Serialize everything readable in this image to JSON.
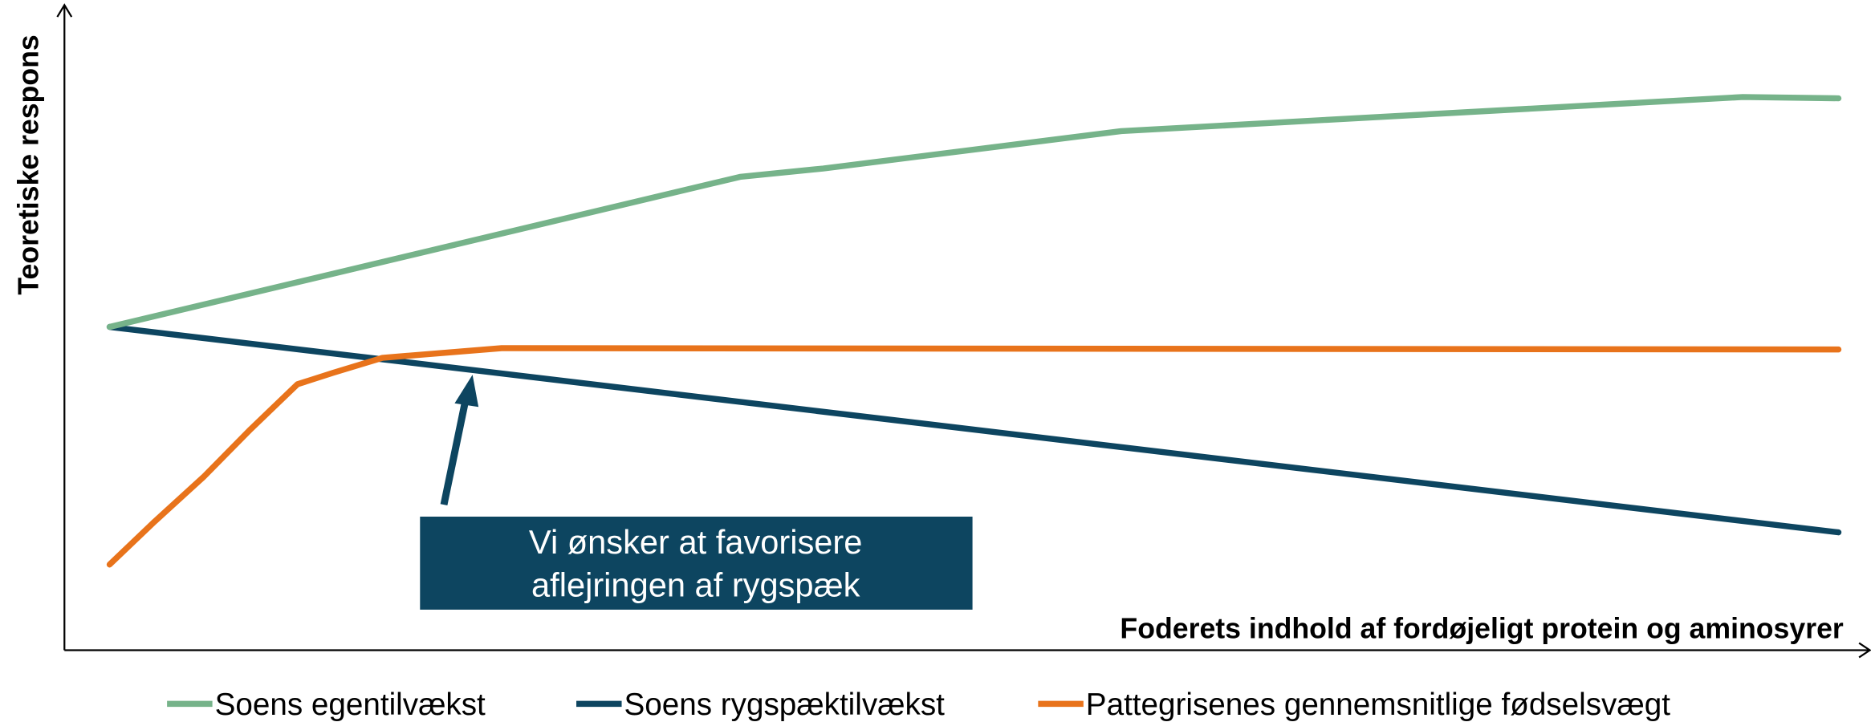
{
  "chart_data": {
    "type": "line",
    "x_label": "Foderets indhold af fordøjeligt protein og aminosyrer",
    "y_label": "Teoretiske respons",
    "xlim": [
      0,
      100
    ],
    "ylim": [
      0,
      100
    ],
    "annotation": [
      "Vi ønsker at favorisere",
      "aflejringen af rygspæk"
    ],
    "series": [
      {
        "name": "Soens egentilvækst",
        "color": "#76b38a",
        "x": [
          2.5,
          37.4,
          42,
          58.5,
          92.9,
          98.2
        ],
        "values": [
          50.2,
          73.5,
          74.8,
          80.6,
          85.9,
          85.7
        ]
      },
      {
        "name": "Soens rygspæktilvækst",
        "color": "#0d4560",
        "x": [
          2.5,
          98.2
        ],
        "values": [
          50.2,
          18.3
        ]
      },
      {
        "name": "Pattegrisenes gennemsnitlige fødselsvægt",
        "color": "#e8731b",
        "x": [
          2.5,
          5.0,
          7.7,
          10.3,
          12.9,
          14.9,
          17.6,
          24.2,
          98.2
        ],
        "values": [
          13.3,
          20.0,
          26.9,
          34.3,
          41.3,
          43.1,
          45.4,
          46.9,
          46.7
        ]
      }
    ]
  }
}
